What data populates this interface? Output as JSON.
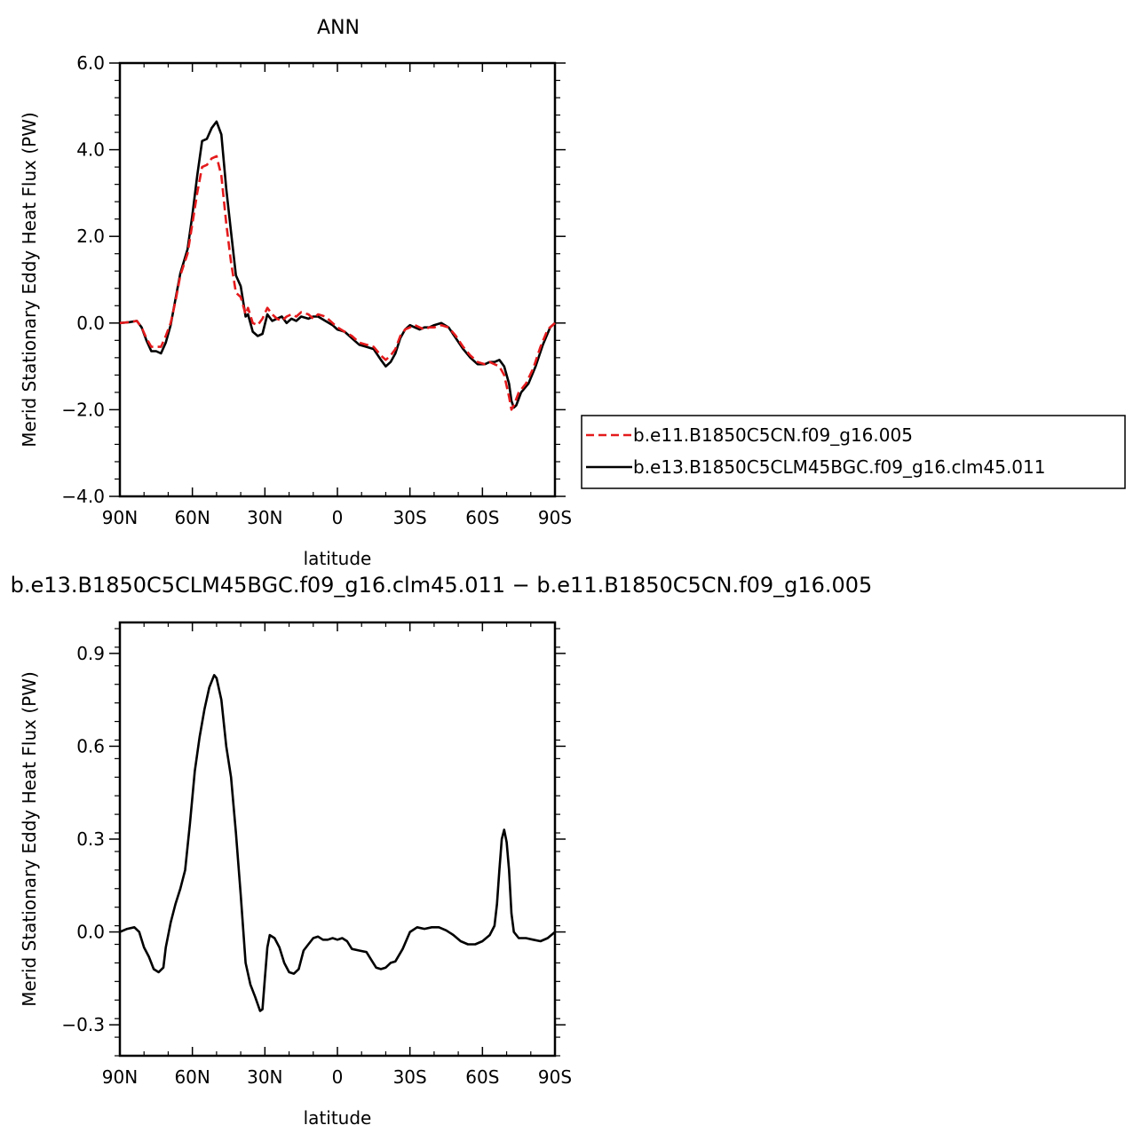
{
  "chart_data": [
    {
      "type": "line",
      "title": "ANN",
      "xlabel": "latitude",
      "ylabel": "Merid Stationary Eddy Heat Flux (PW)",
      "xlim": [
        90,
        -90
      ],
      "ylim": [
        -4.0,
        6.0
      ],
      "x_ticks": [
        90,
        60,
        30,
        0,
        -30,
        -60,
        -90
      ],
      "x_tick_labels": [
        "90N",
        "60N",
        "30N",
        "0",
        "30S",
        "60S",
        "90S"
      ],
      "y_ticks": [
        -4,
        -2,
        0,
        2,
        4,
        6
      ],
      "y_tick_labels": [
        "−4.0",
        "−2.0",
        "0.0",
        "2.0",
        "4.0",
        "6.0"
      ],
      "legend": "right",
      "series": [
        {
          "name": "b.e11.B1850C5CN.f09_g16.005",
          "color": "#e41a1c",
          "dash": true,
          "points": [
            [
              90,
              0.0
            ],
            [
              86,
              0.02
            ],
            [
              83,
              0.05
            ],
            [
              81,
              -0.1
            ],
            [
              79,
              -0.35
            ],
            [
              77,
              -0.55
            ],
            [
              75,
              -0.55
            ],
            [
              73,
              -0.55
            ],
            [
              71,
              -0.3
            ],
            [
              69,
              0.0
            ],
            [
              67,
              0.5
            ],
            [
              65,
              1.1
            ],
            [
              62,
              1.6
            ],
            [
              60,
              2.3
            ],
            [
              58,
              3.0
            ],
            [
              56,
              3.6
            ],
            [
              54,
              3.65
            ],
            [
              52,
              3.8
            ],
            [
              50,
              3.85
            ],
            [
              48,
              3.4
            ],
            [
              46,
              2.3
            ],
            [
              44,
              1.4
            ],
            [
              42,
              0.7
            ],
            [
              40,
              0.6
            ],
            [
              38,
              0.2
            ],
            [
              37,
              0.35
            ],
            [
              35,
              0.0
            ],
            [
              33,
              -0.05
            ],
            [
              31,
              0.1
            ],
            [
              29,
              0.35
            ],
            [
              27,
              0.2
            ],
            [
              25,
              0.1
            ],
            [
              23,
              0.05
            ],
            [
              21,
              0.15
            ],
            [
              19,
              0.2
            ],
            [
              17,
              0.15
            ],
            [
              15,
              0.25
            ],
            [
              12,
              0.2
            ],
            [
              10,
              0.1
            ],
            [
              8,
              0.2
            ],
            [
              5,
              0.15
            ],
            [
              2,
              0.0
            ],
            [
              0,
              -0.1
            ],
            [
              -3,
              -0.2
            ],
            [
              -6,
              -0.3
            ],
            [
              -9,
              -0.45
            ],
            [
              -12,
              -0.5
            ],
            [
              -15,
              -0.55
            ],
            [
              -18,
              -0.75
            ],
            [
              -20,
              -0.85
            ],
            [
              -22,
              -0.75
            ],
            [
              -24,
              -0.6
            ],
            [
              -26,
              -0.3
            ],
            [
              -28,
              -0.15
            ],
            [
              -30,
              -0.1
            ],
            [
              -32,
              -0.05
            ],
            [
              -34,
              -0.1
            ],
            [
              -36,
              -0.15
            ],
            [
              -38,
              -0.1
            ],
            [
              -40,
              -0.1
            ],
            [
              -43,
              -0.05
            ],
            [
              -46,
              -0.1
            ],
            [
              -49,
              -0.3
            ],
            [
              -52,
              -0.55
            ],
            [
              -55,
              -0.75
            ],
            [
              -58,
              -0.9
            ],
            [
              -61,
              -0.95
            ],
            [
              -63,
              -0.9
            ],
            [
              -65,
              -0.95
            ],
            [
              -67,
              -1.0
            ],
            [
              -69,
              -1.2
            ],
            [
              -71,
              -1.7
            ],
            [
              -72,
              -2.0
            ],
            [
              -73,
              -1.9
            ],
            [
              -75,
              -1.6
            ],
            [
              -78,
              -1.4
            ],
            [
              -81,
              -1.05
            ],
            [
              -84,
              -0.55
            ],
            [
              -87,
              -0.15
            ],
            [
              -90,
              0.0
            ]
          ]
        },
        {
          "name": "b.e13.B1850C5CLM45BGC.f09_g16.clm45.011",
          "color": "#000000",
          "dash": false,
          "points": [
            [
              90,
              0.0
            ],
            [
              86,
              0.02
            ],
            [
              83,
              0.05
            ],
            [
              81,
              -0.1
            ],
            [
              79,
              -0.4
            ],
            [
              77,
              -0.65
            ],
            [
              75,
              -0.65
            ],
            [
              73,
              -0.7
            ],
            [
              71,
              -0.45
            ],
            [
              69,
              -0.05
            ],
            [
              67,
              0.55
            ],
            [
              65,
              1.15
            ],
            [
              62,
              1.7
            ],
            [
              60,
              2.5
            ],
            [
              58,
              3.4
            ],
            [
              56,
              4.2
            ],
            [
              54,
              4.25
            ],
            [
              52,
              4.5
            ],
            [
              50,
              4.65
            ],
            [
              48,
              4.35
            ],
            [
              46,
              3.1
            ],
            [
              44,
              2.1
            ],
            [
              42,
              1.1
            ],
            [
              40,
              0.85
            ],
            [
              38,
              0.15
            ],
            [
              37,
              0.2
            ],
            [
              35,
              -0.2
            ],
            [
              33,
              -0.3
            ],
            [
              31,
              -0.25
            ],
            [
              29,
              0.2
            ],
            [
              27,
              0.05
            ],
            [
              25,
              0.1
            ],
            [
              23,
              0.15
            ],
            [
              21,
              0.0
            ],
            [
              19,
              0.1
            ],
            [
              17,
              0.05
            ],
            [
              15,
              0.15
            ],
            [
              12,
              0.1
            ],
            [
              10,
              0.15
            ],
            [
              8,
              0.15
            ],
            [
              5,
              0.05
            ],
            [
              2,
              -0.05
            ],
            [
              0,
              -0.15
            ],
            [
              -3,
              -0.2
            ],
            [
              -6,
              -0.35
            ],
            [
              -9,
              -0.5
            ],
            [
              -12,
              -0.55
            ],
            [
              -15,
              -0.6
            ],
            [
              -18,
              -0.85
            ],
            [
              -20,
              -1.0
            ],
            [
              -22,
              -0.9
            ],
            [
              -24,
              -0.7
            ],
            [
              -26,
              -0.35
            ],
            [
              -28,
              -0.15
            ],
            [
              -30,
              -0.05
            ],
            [
              -32,
              -0.1
            ],
            [
              -34,
              -0.15
            ],
            [
              -36,
              -0.1
            ],
            [
              -38,
              -0.1
            ],
            [
              -40,
              -0.05
            ],
            [
              -43,
              0.0
            ],
            [
              -46,
              -0.1
            ],
            [
              -49,
              -0.35
            ],
            [
              -52,
              -0.6
            ],
            [
              -55,
              -0.8
            ],
            [
              -58,
              -0.95
            ],
            [
              -61,
              -0.95
            ],
            [
              -63,
              -0.9
            ],
            [
              -65,
              -0.9
            ],
            [
              -67,
              -0.85
            ],
            [
              -69,
              -1.0
            ],
            [
              -71,
              -1.4
            ],
            [
              -72,
              -1.8
            ],
            [
              -73,
              -1.95
            ],
            [
              -74,
              -1.9
            ],
            [
              -76,
              -1.6
            ],
            [
              -79,
              -1.4
            ],
            [
              -82,
              -1.0
            ],
            [
              -85,
              -0.5
            ],
            [
              -88,
              -0.1
            ],
            [
              -90,
              0.0
            ]
          ]
        }
      ]
    },
    {
      "type": "line",
      "title": "b.e13.B1850C5CLM45BGC.f09_g16.clm45.011 − b.e11.B1850C5CN.f09_g16.005",
      "xlabel": "latitude",
      "ylabel": "Merid Stationary Eddy Heat Flux (PW)",
      "xlim": [
        90,
        -90
      ],
      "ylim": [
        -0.4,
        1.0
      ],
      "x_ticks": [
        90,
        60,
        30,
        0,
        -30,
        -60,
        -90
      ],
      "x_tick_labels": [
        "90N",
        "60N",
        "30N",
        "0",
        "30S",
        "60S",
        "90S"
      ],
      "y_ticks": [
        -0.3,
        0.0,
        0.3,
        0.6,
        0.9
      ],
      "y_tick_labels": [
        "−0.3",
        "0.0",
        "0.3",
        "0.6",
        "0.9"
      ],
      "series": [
        {
          "color": "#000000",
          "dash": false,
          "points": [
            [
              90,
              0.0
            ],
            [
              87,
              0.01
            ],
            [
              84,
              0.015
            ],
            [
              82,
              0.0
            ],
            [
              80,
              -0.05
            ],
            [
              78,
              -0.08
            ],
            [
              76,
              -0.12
            ],
            [
              74,
              -0.13
            ],
            [
              72,
              -0.115
            ],
            [
              71,
              -0.05
            ],
            [
              69,
              0.03
            ],
            [
              67,
              0.09
            ],
            [
              65,
              0.14
            ],
            [
              63,
              0.2
            ],
            [
              61,
              0.35
            ],
            [
              59,
              0.52
            ],
            [
              57,
              0.63
            ],
            [
              55,
              0.72
            ],
            [
              53,
              0.79
            ],
            [
              51,
              0.83
            ],
            [
              50,
              0.82
            ],
            [
              48,
              0.75
            ],
            [
              46,
              0.6
            ],
            [
              44,
              0.5
            ],
            [
              42,
              0.32
            ],
            [
              40,
              0.12
            ],
            [
              38,
              -0.1
            ],
            [
              36,
              -0.17
            ],
            [
              34,
              -0.21
            ],
            [
              32,
              -0.255
            ],
            [
              31,
              -0.25
            ],
            [
              30,
              -0.15
            ],
            [
              29,
              -0.05
            ],
            [
              28,
              -0.01
            ],
            [
              26,
              -0.02
            ],
            [
              24,
              -0.05
            ],
            [
              22,
              -0.1
            ],
            [
              20,
              -0.13
            ],
            [
              18,
              -0.135
            ],
            [
              16,
              -0.12
            ],
            [
              14,
              -0.06
            ],
            [
              12,
              -0.04
            ],
            [
              10,
              -0.02
            ],
            [
              8,
              -0.015
            ],
            [
              6,
              -0.025
            ],
            [
              4,
              -0.025
            ],
            [
              2,
              -0.02
            ],
            [
              0,
              -0.025
            ],
            [
              -2,
              -0.02
            ],
            [
              -4,
              -0.03
            ],
            [
              -6,
              -0.055
            ],
            [
              -9,
              -0.06
            ],
            [
              -12,
              -0.065
            ],
            [
              -14,
              -0.09
            ],
            [
              -16,
              -0.115
            ],
            [
              -18,
              -0.12
            ],
            [
              -20,
              -0.115
            ],
            [
              -22,
              -0.1
            ],
            [
              -24,
              -0.095
            ],
            [
              -27,
              -0.055
            ],
            [
              -30,
              0.0
            ],
            [
              -33,
              0.015
            ],
            [
              -36,
              0.01
            ],
            [
              -39,
              0.015
            ],
            [
              -42,
              0.015
            ],
            [
              -45,
              0.005
            ],
            [
              -48,
              -0.01
            ],
            [
              -51,
              -0.03
            ],
            [
              -54,
              -0.04
            ],
            [
              -57,
              -0.04
            ],
            [
              -60,
              -0.03
            ],
            [
              -63,
              -0.01
            ],
            [
              -65,
              0.02
            ],
            [
              -66,
              0.09
            ],
            [
              -67,
              0.2
            ],
            [
              -68,
              0.3
            ],
            [
              -69,
              0.33
            ],
            [
              -70,
              0.29
            ],
            [
              -71,
              0.2
            ],
            [
              -72,
              0.06
            ],
            [
              -73,
              0.0
            ],
            [
              -75,
              -0.02
            ],
            [
              -78,
              -0.02
            ],
            [
              -81,
              -0.025
            ],
            [
              -84,
              -0.03
            ],
            [
              -87,
              -0.02
            ],
            [
              -90,
              0.0
            ]
          ]
        }
      ]
    }
  ]
}
